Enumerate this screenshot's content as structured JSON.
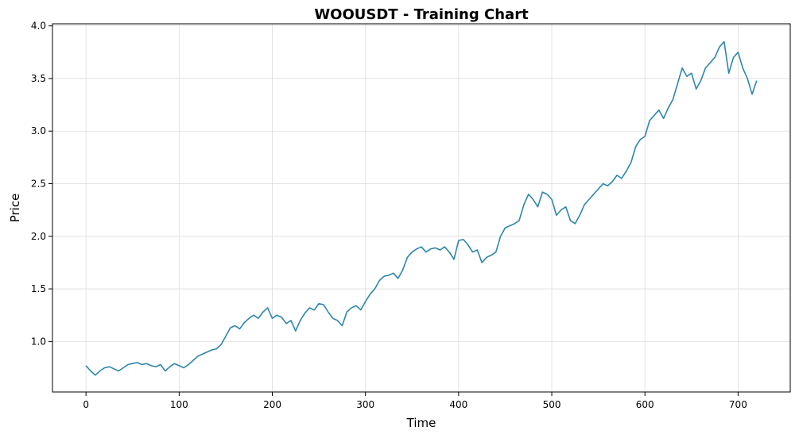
{
  "colors": {
    "line": "#2e86ab",
    "grid": "#dddddd",
    "axis": "#000000"
  },
  "chart_data": {
    "type": "line",
    "title": "WOOUSDT - Training Chart",
    "xlabel": "Time",
    "ylabel": "Price",
    "xlim": [
      -36,
      756
    ],
    "ylim": [
      0.52,
      4.02
    ],
    "xticks": [
      0,
      100,
      200,
      300,
      400,
      500,
      600,
      700
    ],
    "yticks": [
      1.0,
      1.5,
      2.0,
      2.5,
      3.0,
      3.5,
      4.0
    ],
    "xtick_labels": [
      "0",
      "100",
      "200",
      "300",
      "400",
      "500",
      "600",
      "700"
    ],
    "ytick_labels": [
      "1.0",
      "1.5",
      "2.0",
      "2.5",
      "3.0",
      "3.5",
      "4.0"
    ],
    "grid": true,
    "series": [
      {
        "x": [
          0,
          5,
          10,
          15,
          20,
          25,
          30,
          35,
          40,
          45,
          50,
          55,
          60,
          65,
          70,
          75,
          80,
          85,
          90,
          95,
          100,
          105,
          110,
          115,
          120,
          125,
          130,
          135,
          140,
          145,
          150,
          155,
          160,
          165,
          170,
          175,
          180,
          185,
          190,
          195,
          200,
          205,
          210,
          215,
          220,
          225,
          230,
          235,
          240,
          245,
          250,
          255,
          260,
          265,
          270,
          275,
          280,
          285,
          290,
          295,
          300,
          305,
          310,
          315,
          320,
          325,
          330,
          335,
          340,
          345,
          350,
          355,
          360,
          365,
          370,
          375,
          380,
          385,
          390,
          395,
          400,
          405,
          410,
          415,
          420,
          425,
          430,
          435,
          440,
          445,
          450,
          455,
          460,
          465,
          470,
          475,
          480,
          485,
          490,
          495,
          500,
          505,
          510,
          515,
          520,
          525,
          530,
          535,
          540,
          545,
          550,
          555,
          560,
          565,
          570,
          575,
          580,
          585,
          590,
          595,
          600,
          605,
          610,
          615,
          620,
          625,
          630,
          635,
          640,
          645,
          650,
          655,
          660,
          665,
          670,
          675,
          680,
          685,
          690,
          695,
          700,
          705,
          710,
          715,
          720
        ],
        "values": [
          0.77,
          0.72,
          0.68,
          0.72,
          0.75,
          0.76,
          0.74,
          0.72,
          0.75,
          0.78,
          0.79,
          0.8,
          0.78,
          0.79,
          0.77,
          0.76,
          0.78,
          0.72,
          0.76,
          0.79,
          0.77,
          0.75,
          0.78,
          0.82,
          0.86,
          0.88,
          0.9,
          0.92,
          0.93,
          0.97,
          1.05,
          1.13,
          1.15,
          1.12,
          1.18,
          1.22,
          1.25,
          1.22,
          1.28,
          1.32,
          1.22,
          1.25,
          1.23,
          1.17,
          1.2,
          1.1,
          1.2,
          1.27,
          1.32,
          1.3,
          1.36,
          1.35,
          1.28,
          1.22,
          1.2,
          1.15,
          1.28,
          1.32,
          1.34,
          1.3,
          1.38,
          1.45,
          1.5,
          1.58,
          1.62,
          1.63,
          1.65,
          1.6,
          1.68,
          1.8,
          1.85,
          1.88,
          1.9,
          1.85,
          1.88,
          1.89,
          1.87,
          1.9,
          1.85,
          1.78,
          1.96,
          1.97,
          1.92,
          1.85,
          1.87,
          1.75,
          1.8,
          1.82,
          1.85,
          2.0,
          2.08,
          2.1,
          2.12,
          2.15,
          2.3,
          2.4,
          2.35,
          2.28,
          2.42,
          2.4,
          2.35,
          2.2,
          2.25,
          2.28,
          2.15,
          2.12,
          2.2,
          2.3,
          2.35,
          2.4,
          2.45,
          2.5,
          2.48,
          2.52,
          2.58,
          2.55,
          2.62,
          2.7,
          2.85,
          2.92,
          2.95,
          3.1,
          3.15,
          3.2,
          3.12,
          3.22,
          3.3,
          3.45,
          3.6,
          3.52,
          3.55,
          3.4,
          3.48,
          3.6,
          3.65,
          3.7,
          3.8,
          3.85,
          3.55,
          3.7,
          3.75,
          3.6,
          3.5,
          3.35,
          3.48
        ]
      }
    ]
  }
}
